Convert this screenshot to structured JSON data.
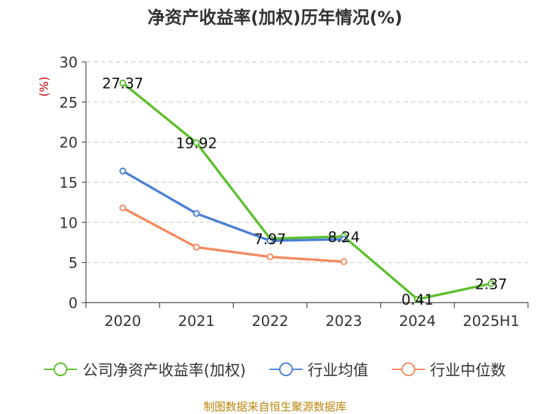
{
  "title": "净资产收益率(加权)历年情况(%)",
  "source": "制图数据来自恒生聚源数据库",
  "colors": {
    "company": "#5bbf2a",
    "industry_avg": "#4a7fd6",
    "industry_median": "#f4895f"
  },
  "chart_data": {
    "type": "line",
    "title": "净资产收益率(加权)历年情况(%)",
    "ylabel": "(%)",
    "xlabel": "",
    "ylim": [
      0,
      30
    ],
    "yticks": [
      0,
      5,
      10,
      15,
      20,
      25,
      30
    ],
    "grid": true,
    "legend_position": "bottom",
    "categories": [
      "2020",
      "2021",
      "2022",
      "2023",
      "2024",
      "2025H1"
    ],
    "series": [
      {
        "name": "公司净资产收益率(加权)",
        "color": "#5bbf2a",
        "values": [
          27.37,
          19.92,
          7.97,
          8.24,
          0.41,
          2.37
        ],
        "labels": [
          "27.37",
          "19.92",
          "7.97",
          "8.24",
          "0.41",
          "2.37"
        ]
      },
      {
        "name": "行业均值",
        "color": "#4a7fd6",
        "values": [
          16.4,
          11.1,
          7.7,
          7.9,
          null,
          null
        ]
      },
      {
        "name": "行业中位数",
        "color": "#f4895f",
        "values": [
          11.8,
          6.9,
          5.7,
          5.1,
          null,
          null
        ]
      }
    ]
  }
}
